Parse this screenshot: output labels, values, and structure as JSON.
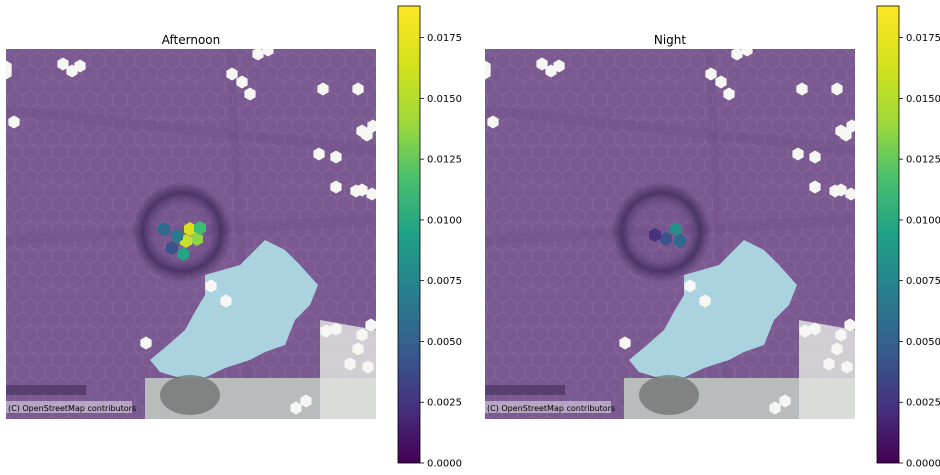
{
  "chart_data": [
    {
      "type": "heatmap",
      "title": "Afternoon",
      "attribution": "(C) OpenStreetMap contributors",
      "colorbar": {
        "colormap": "viridis",
        "range": [
          0.0,
          0.0188
        ],
        "ticks": [
          "0.0000",
          "0.0025",
          "0.0050",
          "0.0075",
          "0.0100",
          "0.0125",
          "0.0150",
          "0.0175"
        ]
      },
      "hotspot": {
        "peak_value": 0.0175,
        "description": "hexbin density peak near map center"
      }
    },
    {
      "type": "heatmap",
      "title": "Night",
      "attribution": "(C) OpenStreetMap contributors",
      "colorbar": {
        "colormap": "viridis",
        "range": [
          0.0,
          0.0188
        ],
        "ticks": [
          "0.0000",
          "0.0025",
          "0.0050",
          "0.0075",
          "0.0100",
          "0.0125",
          "0.0150",
          "0.0175"
        ]
      },
      "hotspot": {
        "peak_value": 0.011,
        "description": "hexbin density peak near map center"
      }
    }
  ]
}
